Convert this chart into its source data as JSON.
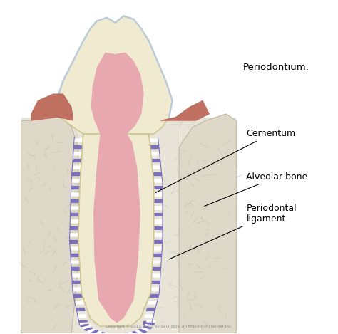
{
  "bg_color": "#ffffff",
  "bone_fill_color": "#e8e4d8",
  "bone_texture_color": "#c8c0b0",
  "tooth_dentin_color": "#f0ead0",
  "pulp_color": "#e8a8b0",
  "pulp_inner_color": "#f0c0c4",
  "periodontal_color": "#7b6fbe",
  "gum_color": "#c07060",
  "crown_outline_color": "#b8cce0",
  "tooth_outline_color": "#d0c890",
  "white_bg": "#ffffff",
  "labels": {
    "periodontium": "Periodontium:",
    "cementum": "Cementum",
    "alveolar_bone": "Alveolar bone",
    "periodontal": "Periodontal\nligament"
  },
  "copyright": "Copyright © 2011, 2008 by Saunders, an imprint of Elsevier Inc.",
  "label_fontsize": 9
}
